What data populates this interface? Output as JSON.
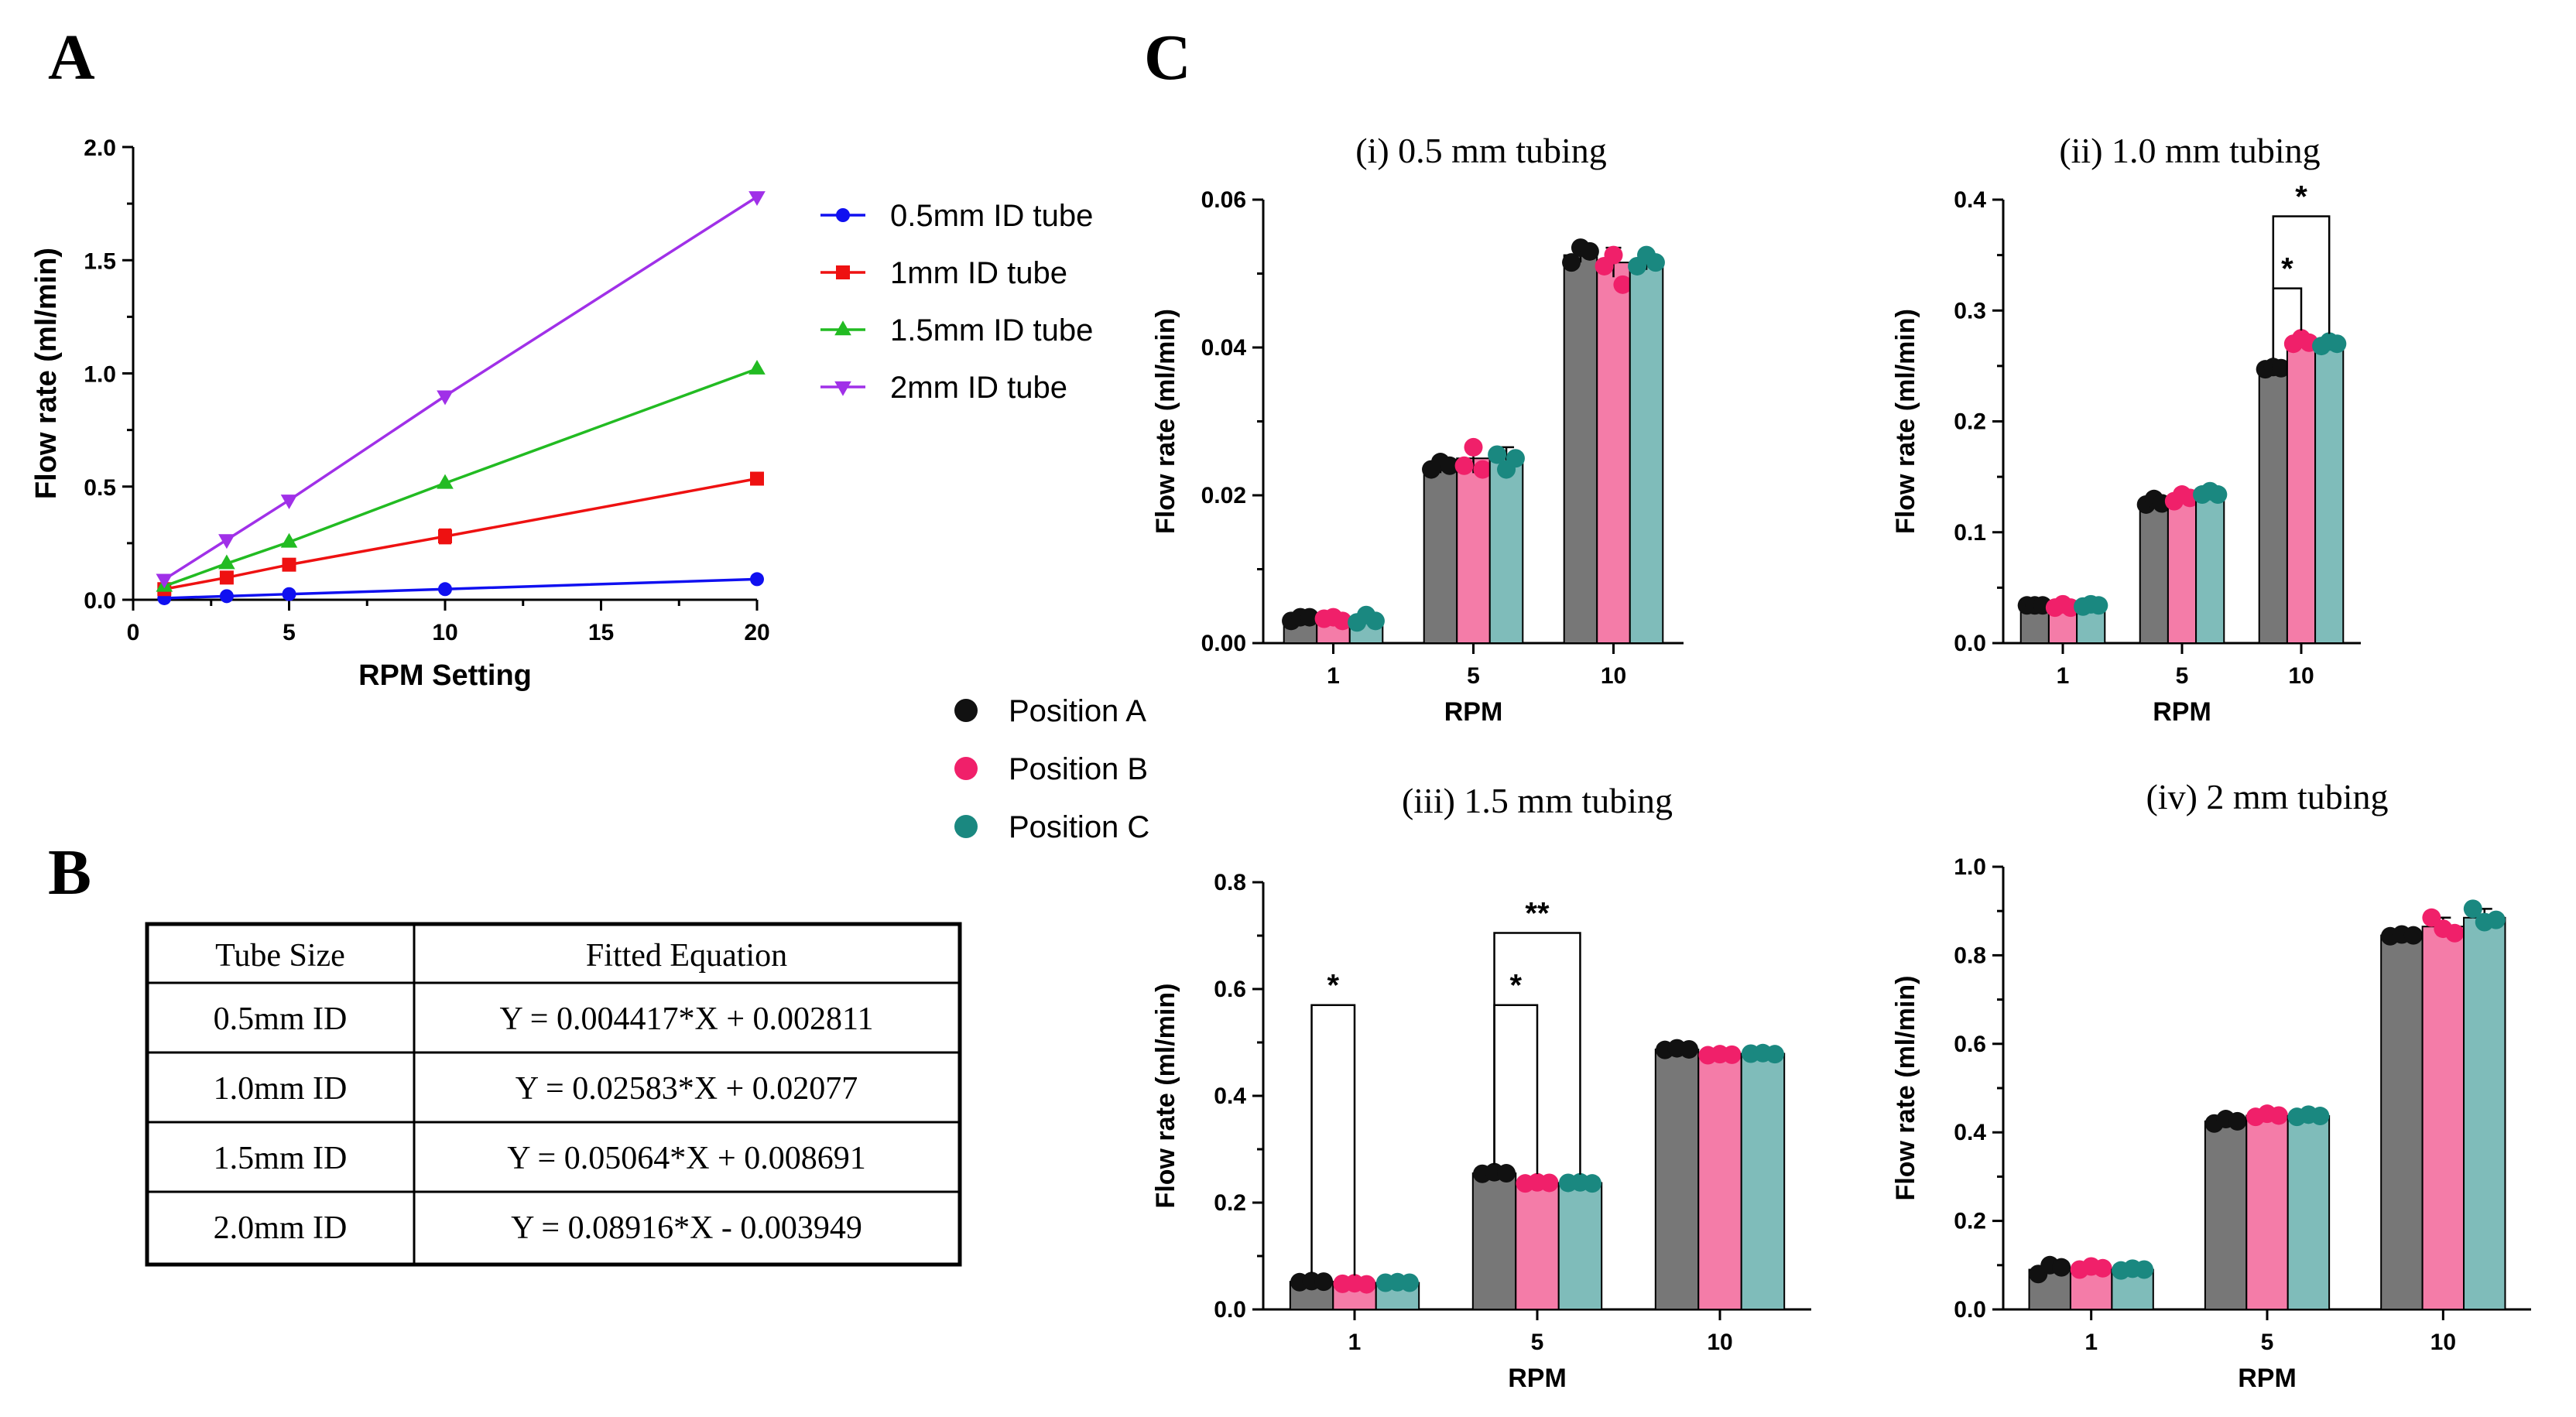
{
  "panel_labels": {
    "a": "A",
    "b": "B",
    "c": "C"
  },
  "colors": {
    "line_05": "#1010f0",
    "line_1": "#ee1111",
    "line_15": "#22bb22",
    "line_2": "#a030e8",
    "pos_a_bar": "#777777",
    "pos_b_bar": "#f47ca8",
    "pos_c_bar": "#7fbcba",
    "pos_a_dot": "#111111",
    "pos_b_dot": "#f0206a",
    "pos_c_dot": "#1a8880"
  },
  "table": {
    "headers": [
      "Tube Size",
      "Fitted Equation"
    ],
    "rows": [
      [
        "0.5mm ID",
        "Y = 0.004417*X + 0.002811"
      ],
      [
        "1.0mm ID",
        "Y = 0.02583*X + 0.02077"
      ],
      [
        "1.5mm ID",
        "Y = 0.05064*X + 0.008691"
      ],
      [
        "2.0mm ID",
        "Y = 0.08916*X - 0.003949"
      ]
    ]
  },
  "position_legend": [
    "Position A",
    "Position B",
    "Position C"
  ],
  "chart_data": [
    {
      "id": "A",
      "type": "line",
      "title": "",
      "xlabel": "RPM Setting",
      "ylabel": "Flow rate (ml/min)",
      "xlim": [
        0,
        20
      ],
      "ylim": [
        0,
        2.0
      ],
      "xticks": [
        "0",
        "5",
        "10",
        "15",
        "20"
      ],
      "yticks": [
        "0.0",
        "0.5",
        "1.0",
        "1.5",
        "2.0"
      ],
      "x": [
        1,
        3,
        5,
        10,
        20
      ],
      "legend_position": "right",
      "series": [
        {
          "name": "0.5mm ID tube",
          "marker": "circle",
          "values": [
            0.007,
            0.016,
            0.025,
            0.047,
            0.091
          ],
          "err": [
            0,
            0,
            0,
            0,
            0
          ]
        },
        {
          "name": "1mm ID tube",
          "marker": "square",
          "values": [
            0.047,
            0.098,
            0.155,
            0.28,
            0.535
          ],
          "err": [
            0,
            0,
            0.01,
            0.03,
            0
          ]
        },
        {
          "name": "1.5mm ID tube",
          "marker": "triangle-up",
          "values": [
            0.06,
            0.16,
            0.255,
            0.515,
            1.02
          ],
          "err": [
            0,
            0,
            0,
            0,
            0
          ]
        },
        {
          "name": "2mm ID tube",
          "marker": "triangle-down",
          "values": [
            0.09,
            0.265,
            0.44,
            0.9,
            1.78
          ],
          "err": [
            0,
            0,
            0,
            0,
            0
          ]
        }
      ]
    },
    {
      "id": "C-i",
      "type": "bar",
      "title": "(i) 0.5 mm tubing",
      "xlabel": "RPM",
      "ylabel": "Flow rate (ml/min)",
      "categories": [
        "1",
        "5",
        "10"
      ],
      "ylim": [
        0,
        0.06
      ],
      "yticks": [
        "0.00",
        "0.02",
        "0.04",
        "0.06"
      ],
      "series": [
        {
          "name": "Position A",
          "values": [
            0.0033,
            0.024,
            0.0525
          ],
          "err": [
            0.0005,
            0.001,
            0.001
          ],
          "points": [
            [
              0.003,
              0.0035,
              0.0035
            ],
            [
              0.0235,
              0.0245,
              0.024
            ],
            [
              0.0515,
              0.0535,
              0.053
            ]
          ]
        },
        {
          "name": "Position B",
          "values": [
            0.0033,
            0.025,
            0.0515
          ],
          "err": [
            0.0004,
            0.002,
            0.002
          ],
          "points": [
            [
              0.0033,
              0.0035,
              0.003
            ],
            [
              0.024,
              0.0265,
              0.0235
            ],
            [
              0.051,
              0.0525,
              0.0485
            ]
          ]
        },
        {
          "name": "Position C",
          "values": [
            0.0033,
            0.025,
            0.0515
          ],
          "err": [
            0.0005,
            0.0015,
            0.001
          ],
          "points": [
            [
              0.0028,
              0.0038,
              0.003
            ],
            [
              0.0255,
              0.0235,
              0.025
            ],
            [
              0.051,
              0.0525,
              0.0515
            ]
          ]
        }
      ],
      "significance": []
    },
    {
      "id": "C-ii",
      "type": "bar",
      "title": "(ii) 1.0 mm tubing",
      "xlabel": "RPM",
      "ylabel": "Flow rate (ml/min)",
      "categories": [
        "1",
        "5",
        "10"
      ],
      "ylim": [
        0,
        0.4
      ],
      "yticks": [
        "0.0",
        "0.1",
        "0.2",
        "0.3",
        "0.4"
      ],
      "series": [
        {
          "name": "Position A",
          "values": [
            0.034,
            0.127,
            0.248
          ],
          "err": [
            0.001,
            0.004,
            0.002
          ],
          "points": [
            [
              0.034,
              0.034,
              0.034
            ],
            [
              0.125,
              0.13,
              0.126
            ],
            [
              0.247,
              0.249,
              0.248
            ]
          ]
        },
        {
          "name": "Position B",
          "values": [
            0.033,
            0.131,
            0.272
          ],
          "err": [
            0.002,
            0.005,
            0.003
          ],
          "points": [
            [
              0.032,
              0.035,
              0.032
            ],
            [
              0.128,
              0.134,
              0.131
            ],
            [
              0.27,
              0.275,
              0.271
            ]
          ]
        },
        {
          "name": "Position C",
          "values": [
            0.034,
            0.135,
            0.27
          ],
          "err": [
            0.002,
            0.003,
            0.002
          ],
          "points": [
            [
              0.033,
              0.035,
              0.034
            ],
            [
              0.134,
              0.137,
              0.134
            ],
            [
              0.268,
              0.272,
              0.27
            ]
          ]
        }
      ],
      "significance": [
        {
          "category": 2,
          "from": 0,
          "to": 1,
          "level": 0.32,
          "label": "*"
        },
        {
          "category": 2,
          "from": 0,
          "to": 2,
          "level": 0.385,
          "label": "*"
        }
      ]
    },
    {
      "id": "C-iii",
      "type": "bar",
      "title": "(iii) 1.5 mm tubing",
      "xlabel": "RPM",
      "ylabel": "Flow rate (ml/min)",
      "categories": [
        "1",
        "5",
        "10"
      ],
      "ylim": [
        0,
        0.8
      ],
      "yticks": [
        "0.0",
        "0.2",
        "0.4",
        "0.6",
        "0.8"
      ],
      "series": [
        {
          "name": "Position A",
          "values": [
            0.052,
            0.255,
            0.487
          ],
          "err": [
            0.002,
            0.002,
            0.002
          ],
          "points": [
            [
              0.051,
              0.053,
              0.052
            ],
            [
              0.254,
              0.257,
              0.255
            ],
            [
              0.486,
              0.489,
              0.487
            ]
          ]
        },
        {
          "name": "Position B",
          "values": [
            0.048,
            0.237,
            0.477
          ],
          "err": [
            0.001,
            0.002,
            0.002
          ],
          "points": [
            [
              0.048,
              0.049,
              0.047
            ],
            [
              0.236,
              0.238,
              0.237
            ],
            [
              0.476,
              0.478,
              0.477
            ]
          ]
        },
        {
          "name": "Position C",
          "values": [
            0.05,
            0.237,
            0.479
          ],
          "err": [
            0.001,
            0.001,
            0.001
          ],
          "points": [
            [
              0.05,
              0.051,
              0.05
            ],
            [
              0.237,
              0.238,
              0.236
            ],
            [
              0.479,
              0.48,
              0.478
            ]
          ]
        }
      ],
      "significance": [
        {
          "category": 0,
          "from": 0,
          "to": 1,
          "level": 0.57,
          "label": "*"
        },
        {
          "category": 1,
          "from": 0,
          "to": 1,
          "level": 0.57,
          "label": "*"
        },
        {
          "category": 1,
          "from": 0,
          "to": 2,
          "level": 0.705,
          "label": "**"
        }
      ]
    },
    {
      "id": "C-iv",
      "type": "bar",
      "title": "(iv) 2 mm tubing",
      "xlabel": "RPM",
      "ylabel": "Flow rate (ml/min)",
      "categories": [
        "1",
        "5",
        "10"
      ],
      "ylim": [
        0,
        1.0
      ],
      "yticks": [
        "0.0",
        "0.2",
        "0.4",
        "0.6",
        "0.8",
        "1.0"
      ],
      "series": [
        {
          "name": "Position A",
          "values": [
            0.09,
            0.425,
            0.845
          ],
          "err": [
            0.01,
            0.005,
            0.003
          ],
          "points": [
            [
              0.08,
              0.1,
              0.095
            ],
            [
              0.42,
              0.43,
              0.425
            ],
            [
              0.843,
              0.847,
              0.845
            ]
          ]
        },
        {
          "name": "Position B",
          "values": [
            0.093,
            0.438,
            0.865
          ],
          "err": [
            0.005,
            0.005,
            0.02
          ],
          "points": [
            [
              0.09,
              0.097,
              0.093
            ],
            [
              0.435,
              0.442,
              0.438
            ],
            [
              0.885,
              0.86,
              0.85
            ]
          ]
        },
        {
          "name": "Position C",
          "values": [
            0.09,
            0.437,
            0.885
          ],
          "err": [
            0.004,
            0.004,
            0.02
          ],
          "points": [
            [
              0.088,
              0.092,
              0.09
            ],
            [
              0.435,
              0.44,
              0.437
            ],
            [
              0.905,
              0.875,
              0.88
            ]
          ]
        }
      ],
      "significance": []
    }
  ]
}
